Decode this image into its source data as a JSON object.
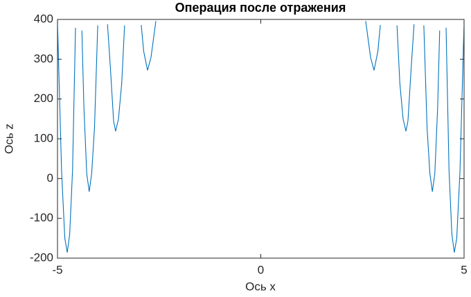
{
  "chart_data": {
    "type": "line",
    "title": "Операция после отражения",
    "x_label": "Ось x",
    "y_label": "Ось z",
    "x": [
      -5,
      -4.9,
      -4.82,
      -4.76,
      -4.7,
      -4.63,
      -4.557,
      null,
      -4.4,
      -4.35,
      -4.28,
      -4.22,
      -4.16,
      -4.09,
      -4.01,
      null,
      -3.77,
      -3.7,
      -3.62,
      -3.57,
      -3.5,
      -3.42,
      -3.35,
      null,
      -2.94,
      -2.88,
      -2.785,
      -2.7,
      -2.58,
      null,
      2.58,
      2.7,
      2.785,
      2.88,
      2.94,
      null,
      3.35,
      3.42,
      3.5,
      3.57,
      3.62,
      3.7,
      3.77,
      null,
      4.01,
      4.09,
      4.16,
      4.22,
      4.28,
      4.35,
      4.4,
      null,
      4.557,
      4.63,
      4.7,
      4.76,
      4.82,
      4.9,
      5
    ],
    "series": [
      {
        "name": "z",
        "color": "#0072bd",
        "values": [
          395,
          20,
          -150,
          -186,
          -140,
          20,
          379,
          null,
          372,
          178,
          12,
          -33,
          12,
          127,
          385,
          null,
          388,
          280,
          145,
          119,
          150,
          240,
          385,
          null,
          386,
          320,
          272,
          305,
          396,
          null,
          396,
          305,
          272,
          320,
          386,
          null,
          385,
          240,
          150,
          119,
          145,
          280,
          388,
          null,
          385,
          127,
          12,
          -33,
          12,
          178,
          372,
          null,
          379,
          20,
          -140,
          -186,
          -150,
          20,
          395
        ]
      }
    ],
    "xlim": [
      -5,
      5
    ],
    "ylim": [
      -200,
      400
    ],
    "xticks": [
      -5,
      0,
      5
    ],
    "yticks": [
      -200,
      -100,
      0,
      100,
      200,
      300,
      400
    ]
  }
}
